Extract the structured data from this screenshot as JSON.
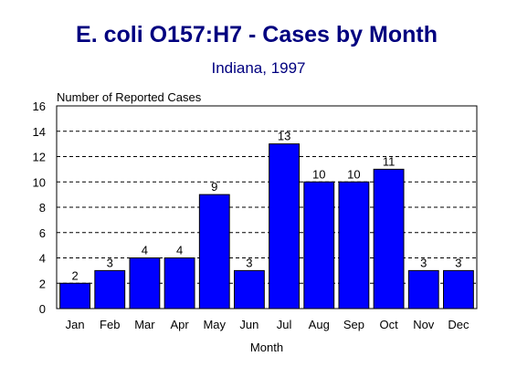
{
  "chart_data": {
    "type": "bar",
    "title": "E. coli O157:H7 - Cases by Month",
    "subtitle": "Indiana, 1997",
    "ylabel": "Number of Reported Cases",
    "xlabel": "Month",
    "categories": [
      "Jan",
      "Feb",
      "Mar",
      "Apr",
      "May",
      "Jun",
      "Jul",
      "Aug",
      "Sep",
      "Oct",
      "Nov",
      "Dec"
    ],
    "values": [
      2,
      3,
      4,
      4,
      9,
      3,
      13,
      10,
      10,
      11,
      3,
      3
    ],
    "value_labels": [
      "2",
      "3",
      "4",
      "4",
      "9",
      "3",
      "13",
      "10",
      "10",
      "11",
      "3",
      "3"
    ],
    "ylim": [
      0,
      16
    ],
    "yticks": [
      0,
      2,
      4,
      6,
      8,
      10,
      12,
      14,
      16
    ],
    "ytick_labels": [
      "0",
      "2",
      "4",
      "6",
      "8",
      "10",
      "12",
      "14",
      "16"
    ],
    "grid": true,
    "grid_style": "dashed-horizontal",
    "legend": "none",
    "colors": {
      "bar": "#0000ff",
      "title": "#00007f",
      "axis": "#000000"
    }
  }
}
